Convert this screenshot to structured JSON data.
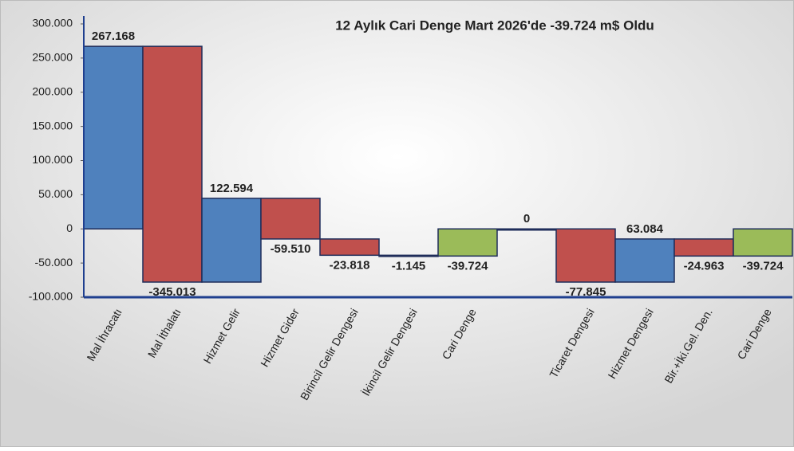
{
  "chart_data": {
    "type": "waterfall",
    "title": "12 Aylık Cari Denge Mart 2026'de -39.724 m$ Oldu",
    "categories": [
      "Mal İhracatı",
      "Mal İthalatı",
      "Hizmet Gelir",
      "Hizmet Gider",
      "Birincil Gelir Dengesi",
      "İkincil Gelir Dengesi",
      "Cari Denge",
      null,
      "Ticaret Dengesi",
      "Hizmet Dengesi",
      "Bir.+İki.Gel. Den.",
      "Cari Denge"
    ],
    "values": [
      267168,
      -345013,
      122594,
      -59510,
      -23818,
      -1145,
      -39724,
      0,
      -77845,
      63084,
      -24963,
      -39724
    ],
    "value_labels": [
      "267.168",
      "-345.013",
      "122.594",
      "-59.510",
      "-23.818",
      "-1.145",
      "-39.724",
      "0",
      "-77.845",
      "63.084",
      "-24.963",
      "-39.724"
    ],
    "total": [
      false,
      false,
      false,
      false,
      false,
      false,
      true,
      true,
      true,
      false,
      false,
      true
    ],
    "colors": [
      "#4f81bd",
      "#c0504d",
      "#4f81bd",
      "#c0504d",
      "#c0504d",
      "#c0504d",
      "#9bbb59",
      "#4f81bd",
      "#c0504d",
      "#4f81bd",
      "#c0504d",
      "#9bbb59"
    ],
    "ylim": [
      -100000,
      300000
    ],
    "yticks": [
      {
        "value": -100000,
        "label": "-100.000"
      },
      {
        "value": -50000,
        "label": "-50.000"
      },
      {
        "value": 0,
        "label": "0"
      },
      {
        "value": 50000,
        "label": "50.000"
      },
      {
        "value": 100000,
        "label": "100.000"
      },
      {
        "value": 150000,
        "label": "150.000"
      },
      {
        "value": 200000,
        "label": "200.000"
      },
      {
        "value": 250000,
        "label": "250.000"
      },
      {
        "value": 300000,
        "label": "300.000"
      }
    ]
  }
}
